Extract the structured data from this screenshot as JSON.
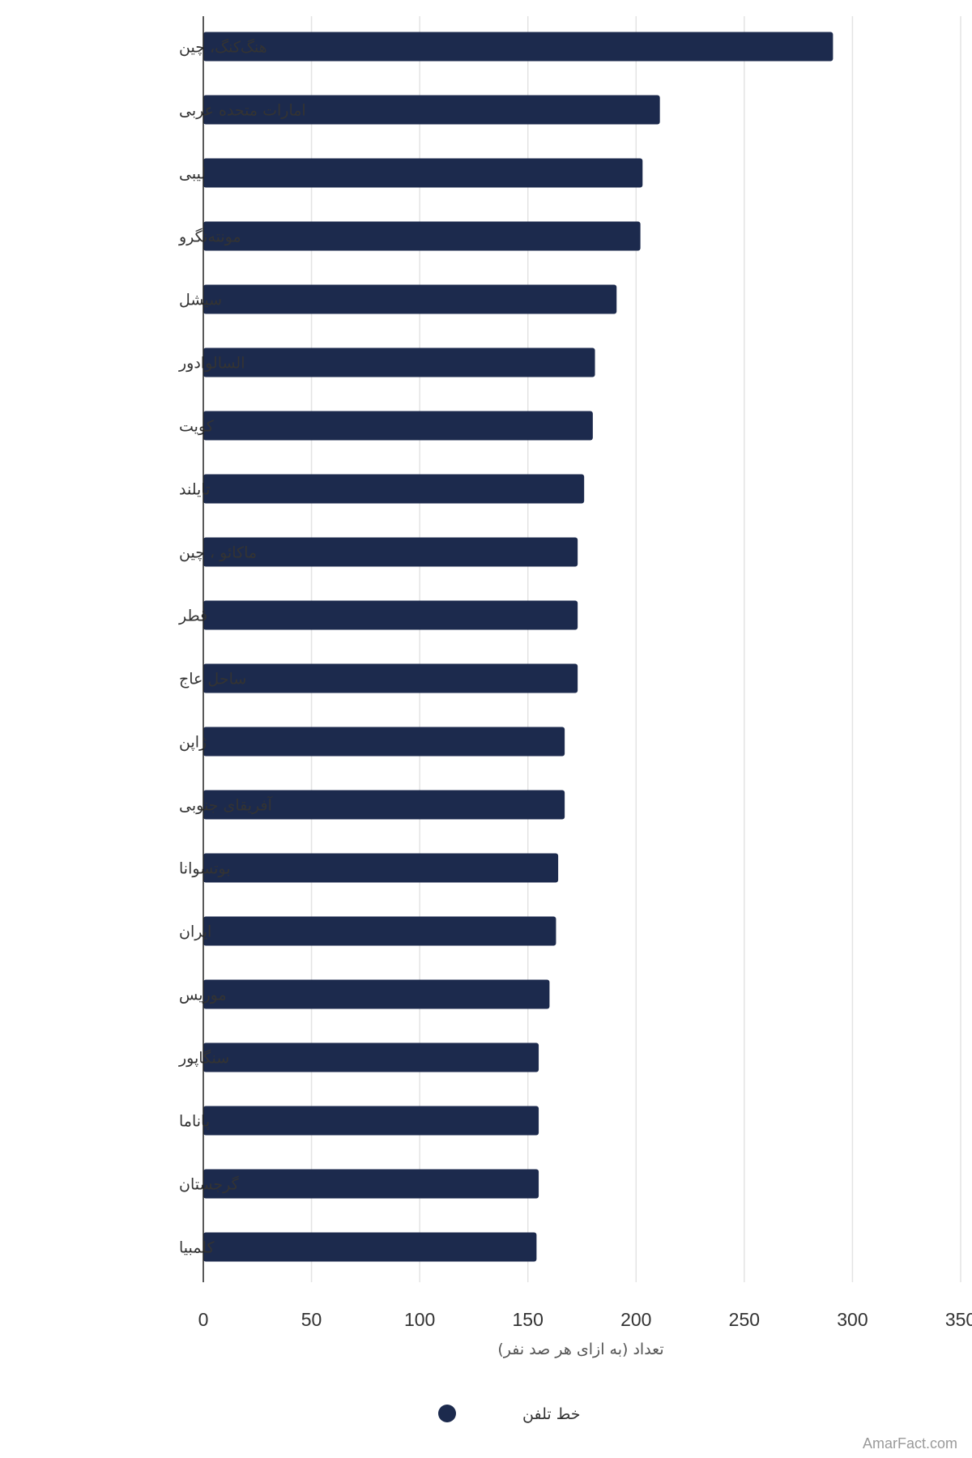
{
  "chart_data": {
    "type": "bar",
    "orientation": "horizontal",
    "categories": [
      "هنگ‌کنگ، چین",
      "امارات متحده عربی",
      "لیبی",
      "مونته‌نگرو",
      "سیشل",
      "السالوادور",
      "کویت",
      "تایلند",
      "ماکائو ، چین",
      "قطر",
      "ساحل عاج",
      "ژاپن",
      "آفریقای جنوبی",
      "بوتسوانا",
      "ایران",
      "موریس",
      "سنگاپور",
      "پاناما",
      "گرجستان",
      "کلمبیا"
    ],
    "series": [
      {
        "name": "خط تلفن",
        "color": "#1c2a4d",
        "values": [
          291,
          211,
          203,
          202,
          191,
          181,
          180,
          176,
          173,
          173,
          173,
          167,
          167,
          164,
          163,
          160,
          155,
          155,
          155,
          154
        ]
      }
    ],
    "xlabel": "تعداد (به ازای هر صد نفر)",
    "xlim": [
      0,
      350
    ],
    "xticks": [
      "0",
      "50",
      "100",
      "150",
      "200",
      "250",
      "300",
      "350"
    ],
    "grid": true,
    "legend_position": "bottom-center"
  },
  "watermark": "AmarFact.com"
}
